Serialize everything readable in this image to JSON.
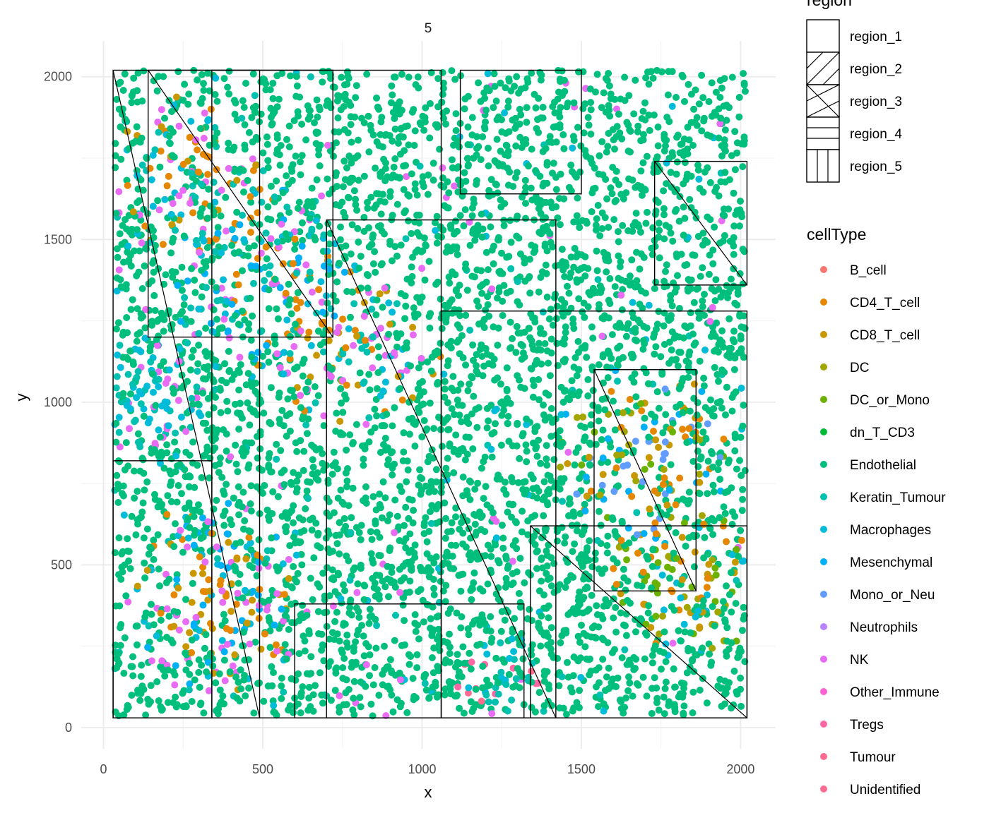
{
  "chart_data": {
    "type": "scatter",
    "facet_title": "5",
    "xlabel": "x",
    "ylabel": "y",
    "xlim": [
      -70,
      2110
    ],
    "ylim": [
      -65,
      2110
    ],
    "x_ticks": [
      0,
      500,
      1000,
      1500,
      2000
    ],
    "y_ticks": [
      0,
      500,
      1000,
      1500,
      2000
    ],
    "x_tick_labels": [
      "0",
      "500",
      "1000",
      "1500",
      "2000"
    ],
    "y_tick_labels": [
      "0",
      "500",
      "1000",
      "1500",
      "2000"
    ],
    "grid": true,
    "legend_position": "right",
    "region_legend": {
      "title": "region",
      "items": [
        {
          "label": "region_1",
          "pattern": "none"
        },
        {
          "label": "region_2",
          "pattern": "diagonal-up"
        },
        {
          "label": "region_3",
          "pattern": "chevron"
        },
        {
          "label": "region_4",
          "pattern": "horizontal"
        },
        {
          "label": "region_5",
          "pattern": "vertical"
        }
      ]
    },
    "celltype_legend": {
      "title": "cellType",
      "items": [
        {
          "label": "B_cell",
          "color": "#F8766D"
        },
        {
          "label": "CD4_T_cell",
          "color": "#E58700"
        },
        {
          "label": "CD8_T_cell",
          "color": "#C99800"
        },
        {
          "label": "DC",
          "color": "#A3A500"
        },
        {
          "label": "DC_or_Mono",
          "color": "#6BB100"
        },
        {
          "label": "dn_T_CD3",
          "color": "#00BA38"
        },
        {
          "label": "Endothelial",
          "color": "#00BF7D"
        },
        {
          "label": "Keratin_Tumour",
          "color": "#00C0AF"
        },
        {
          "label": "Macrophages",
          "color": "#00BCD8"
        },
        {
          "label": "Mesenchymal",
          "color": "#00B0F6"
        },
        {
          "label": "Mono_or_Neu",
          "color": "#619CFF"
        },
        {
          "label": "Neutrophils",
          "color": "#B983FF"
        },
        {
          "label": "NK",
          "color": "#E76BF3"
        },
        {
          "label": "Other_Immune",
          "color": "#FD61D1"
        },
        {
          "label": "Tregs",
          "color": "#FF67A4"
        },
        {
          "label": "Tumour",
          "color": "#FF6C91"
        },
        {
          "label": "Unidentified",
          "color": "#FF6C91"
        }
      ]
    },
    "region_outline_color": "#000000",
    "point_note": "",
    "region_boxes": [
      {
        "x": [
          30,
          490
        ],
        "y": [
          30,
          2020
        ]
      },
      {
        "x": [
          340,
          1060
        ],
        "y": [
          30,
          2020
        ]
      },
      {
        "x": [
          700,
          1420
        ],
        "y": [
          30,
          1560
        ]
      },
      {
        "x": [
          1060,
          2020
        ],
        "y": [
          30,
          1280
        ]
      },
      {
        "x": [
          1730,
          2020
        ],
        "y": [
          1360,
          1740
        ]
      },
      {
        "x": [
          1120,
          1500
        ],
        "y": [
          1640,
          2020
        ]
      },
      {
        "x": [
          1540,
          1860
        ],
        "y": [
          420,
          1100
        ]
      },
      {
        "x": [
          30,
          340
        ],
        "y": [
          30,
          820
        ]
      },
      {
        "x": [
          140,
          720
        ],
        "y": [
          1200,
          2020
        ]
      },
      {
        "x": [
          600,
          1320
        ],
        "y": [
          30,
          380
        ]
      },
      {
        "x": [
          1340,
          2020
        ],
        "y": [
          30,
          620
        ]
      }
    ]
  }
}
